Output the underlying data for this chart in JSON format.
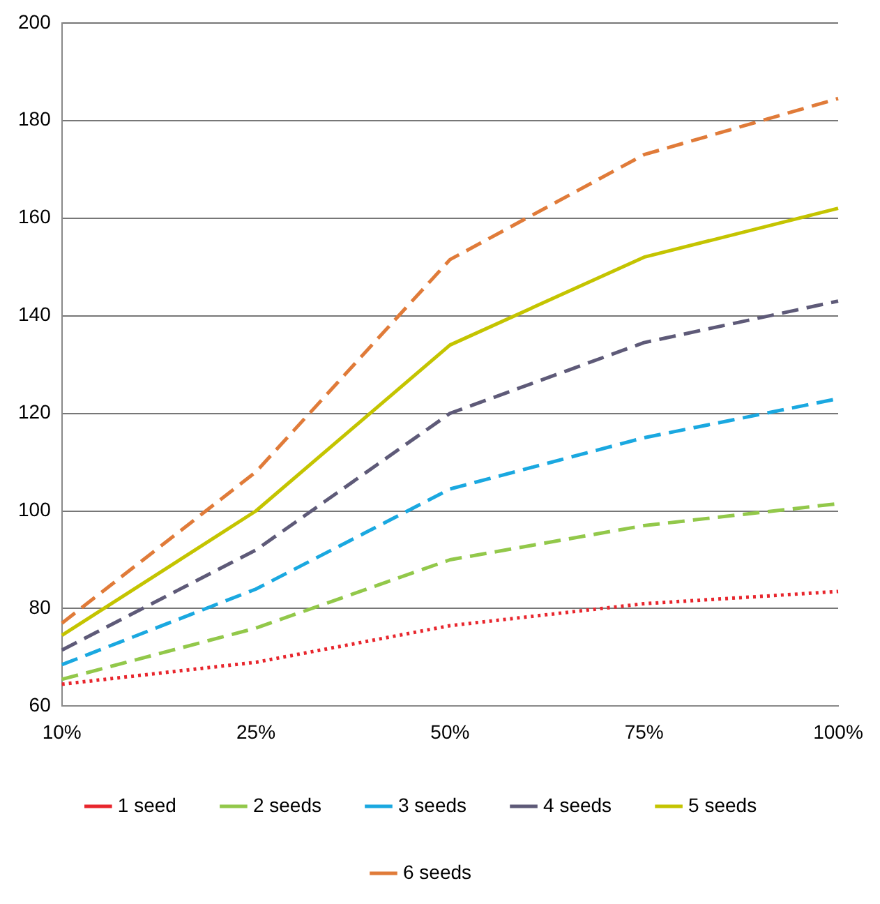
{
  "chart_data": {
    "type": "line",
    "categories": [
      "10%",
      "25%",
      "50%",
      "75%",
      "100%"
    ],
    "series": [
      {
        "name": "1 seed",
        "color": "#e8262d",
        "line_style": "dotted",
        "values": [
          64.5,
          69,
          76.5,
          81,
          83.5
        ]
      },
      {
        "name": "2 seeds",
        "color": "#92c84a",
        "line_style": "dashed",
        "values": [
          65.5,
          76,
          90,
          97,
          101.5
        ]
      },
      {
        "name": "3 seeds",
        "color": "#1aa8e0",
        "line_style": "dashed",
        "values": [
          68.5,
          84,
          104.5,
          115,
          123
        ]
      },
      {
        "name": "4 seeds",
        "color": "#5e5a78",
        "line_style": "dashed",
        "values": [
          71.5,
          92,
          120,
          134.5,
          143
        ]
      },
      {
        "name": "5 seeds",
        "color": "#c4c400",
        "line_style": "solid",
        "values": [
          74.5,
          100,
          134,
          152,
          162
        ]
      },
      {
        "name": "6 seeds",
        "color": "#e07b39",
        "line_style": "dashed",
        "values": [
          77,
          108,
          151.5,
          173,
          184.5
        ]
      }
    ],
    "ylim": [
      60,
      200
    ],
    "yticks": [
      60,
      80,
      100,
      120,
      140,
      160,
      180,
      200
    ],
    "grid": "y",
    "legend": "bottom",
    "marker": "none"
  }
}
